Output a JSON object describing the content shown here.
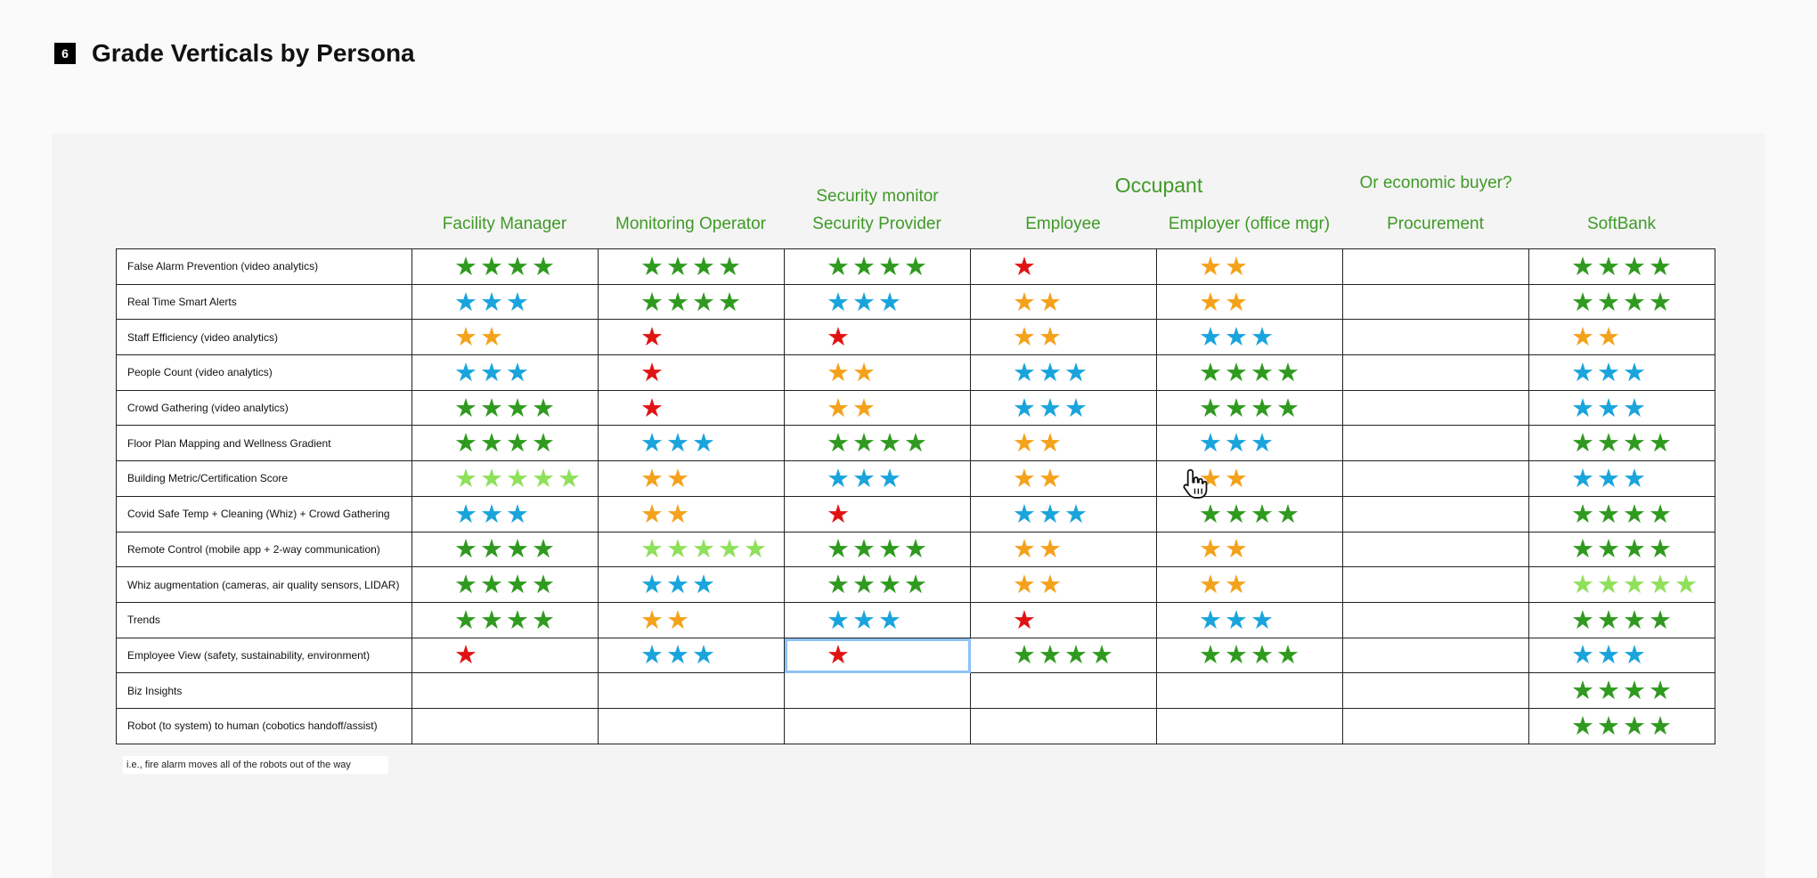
{
  "header": {
    "page_number": "6",
    "title": "Grade Verticals by Persona"
  },
  "top_labels": {
    "security_monitor": "Security monitor",
    "occupant": "Occupant",
    "economic_buyer": "Or economic buyer?"
  },
  "columns": [
    "Facility Manager",
    "Monitoring Operator",
    "Security Provider",
    "Employee",
    "Employer (office mgr)",
    "Procurement",
    "SoftBank"
  ],
  "star_colors": {
    "dg": "#2f9a1f",
    "lg": "#8fe05a",
    "bl": "#19a4dc",
    "or": "#f4a21b",
    "rd": "#e01313"
  },
  "rows": [
    {
      "label": "False Alarm Prevention (video analytics)",
      "cells": [
        "dg4",
        "dg4",
        "dg4",
        "rd1",
        "or2",
        "",
        "dg4"
      ]
    },
    {
      "label": "Real Time Smart Alerts",
      "cells": [
        "bl3",
        "dg4",
        "bl3",
        "or2",
        "or2",
        "",
        "dg4"
      ]
    },
    {
      "label": "Staff Efficiency (video analytics)",
      "cells": [
        "or2",
        "rd1",
        "rd1",
        "or2",
        "bl3",
        "",
        "or2"
      ]
    },
    {
      "label": "People Count (video analytics)",
      "cells": [
        "bl3",
        "rd1",
        "or2",
        "bl3",
        "dg4",
        "",
        "bl3"
      ]
    },
    {
      "label": "Crowd Gathering (video analytics)",
      "cells": [
        "dg4",
        "rd1",
        "or2",
        "bl3",
        "dg4",
        "",
        "bl3"
      ]
    },
    {
      "label": "Floor Plan Mapping and Wellness Gradient",
      "cells": [
        "dg4",
        "bl3",
        "dg4",
        "or2",
        "bl3",
        "",
        "dg4"
      ]
    },
    {
      "label": "Building Metric/Certification Score",
      "cells": [
        "lg5",
        "or2",
        "bl3",
        "or2",
        "or2",
        "",
        "bl3"
      ]
    },
    {
      "label": "Covid Safe Temp + Cleaning (Whiz) + Crowd Gathering",
      "cells": [
        "bl3",
        "or2",
        "rd1",
        "bl3",
        "dg4",
        "",
        "dg4"
      ]
    },
    {
      "label": "Remote Control (mobile app + 2-way communication)",
      "cells": [
        "dg4",
        "lg5",
        "dg4",
        "or2",
        "or2",
        "",
        "dg4"
      ]
    },
    {
      "label": "Whiz augmentation (cameras, air quality sensors, LIDAR)",
      "cells": [
        "dg4",
        "bl3",
        "dg4",
        "or2",
        "or2",
        "",
        "lg5"
      ]
    },
    {
      "label": "Trends",
      "cells": [
        "dg4",
        "or2",
        "bl3",
        "rd1",
        "bl3",
        "",
        "dg4"
      ]
    },
    {
      "label": "Employee View (safety, sustainability, environment)",
      "cells": [
        "rd1",
        "bl3",
        "rd1",
        "dg4",
        "dg4",
        "",
        "bl3"
      ]
    },
    {
      "label": "Biz Insights",
      "cells": [
        "",
        "",
        "",
        "",
        "",
        "",
        "dg4"
      ]
    },
    {
      "label": "Robot (to system) to human (cobotics handoff/assist)",
      "cells": [
        "",
        "",
        "",
        "",
        "",
        "",
        "dg4"
      ]
    }
  ],
  "footnote": "i.e., fire alarm moves all of the robots out of the way"
}
